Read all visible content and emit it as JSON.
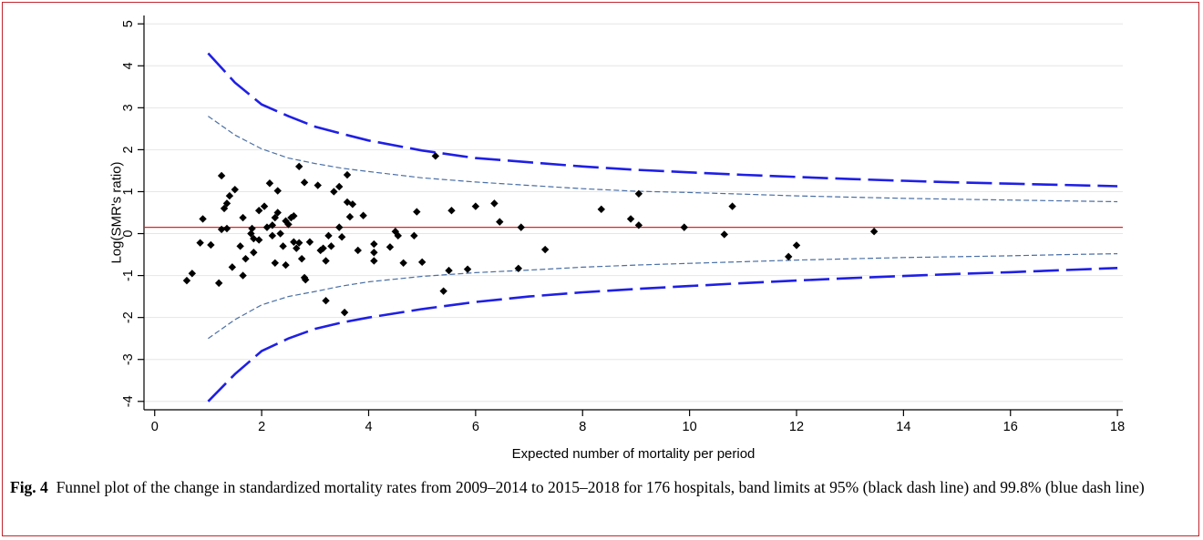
{
  "caption": {
    "label": "Fig. 4",
    "text": "Funnel plot of the change in standardized mortality rates from 2009–2014 to 2015–2018 for 176 hospitals, band limits at 95% (black dash line) and 99.8% (blue dash line)"
  },
  "chart_data": {
    "type": "scatter",
    "title": "",
    "xlabel": "Expected number of mortality per period",
    "ylabel": "Log(SMR's ratio)",
    "xlim": [
      -0.2,
      18.1
    ],
    "ylim": [
      -4.2,
      5.2
    ],
    "x_ticks": [
      0,
      2,
      4,
      6,
      8,
      10,
      12,
      14,
      16,
      18
    ],
    "y_ticks": [
      -4,
      -3,
      -2,
      -1,
      0,
      1,
      2,
      3,
      4,
      5
    ],
    "grid": "horizontal",
    "reference_line": {
      "y": 0.15,
      "color": "#d62728"
    },
    "limit_colors": {
      "inner": "#4a6fa5",
      "outer": "#1f1fe6"
    },
    "points_color": "#000000",
    "limits": {
      "x": [
        1,
        1.5,
        2,
        2.5,
        3,
        3.5,
        4,
        5,
        6,
        7,
        8,
        9,
        10,
        11,
        12,
        13,
        14,
        15,
        16,
        17,
        18
      ],
      "upper_998": [
        4.3,
        3.6,
        3.08,
        2.8,
        2.55,
        2.38,
        2.22,
        1.98,
        1.8,
        1.7,
        1.6,
        1.52,
        1.46,
        1.4,
        1.35,
        1.3,
        1.26,
        1.22,
        1.19,
        1.16,
        1.13
      ],
      "upper_95": [
        2.8,
        2.35,
        2.02,
        1.8,
        1.67,
        1.56,
        1.48,
        1.33,
        1.23,
        1.15,
        1.07,
        1.01,
        0.98,
        0.94,
        0.9,
        0.87,
        0.84,
        0.82,
        0.8,
        0.78,
        0.76
      ],
      "lower_95": [
        -2.5,
        -2.05,
        -1.7,
        -1.5,
        -1.38,
        -1.25,
        -1.15,
        -1.02,
        -0.93,
        -0.87,
        -0.8,
        -0.75,
        -0.71,
        -0.67,
        -0.63,
        -0.6,
        -0.57,
        -0.55,
        -0.53,
        -0.5,
        -0.48
      ],
      "lower_998": [
        -4.0,
        -3.35,
        -2.8,
        -2.5,
        -2.27,
        -2.12,
        -2.0,
        -1.8,
        -1.63,
        -1.5,
        -1.4,
        -1.32,
        -1.25,
        -1.18,
        -1.12,
        -1.06,
        -1.01,
        -0.96,
        -0.92,
        -0.87,
        -0.82
      ]
    },
    "points": [
      {
        "x": 0.6,
        "y": -1.12
      },
      {
        "x": 0.7,
        "y": -0.95
      },
      {
        "x": 0.85,
        "y": -0.22
      },
      {
        "x": 0.9,
        "y": 0.35
      },
      {
        "x": 1.05,
        "y": -0.27
      },
      {
        "x": 1.2,
        "y": -1.18
      },
      {
        "x": 1.25,
        "y": 1.38
      },
      {
        "x": 1.25,
        "y": 0.1
      },
      {
        "x": 1.3,
        "y": 0.6
      },
      {
        "x": 1.35,
        "y": 0.72
      },
      {
        "x": 1.35,
        "y": 0.12
      },
      {
        "x": 1.4,
        "y": 0.9
      },
      {
        "x": 1.5,
        "y": 1.05
      },
      {
        "x": 1.45,
        "y": -0.8
      },
      {
        "x": 1.6,
        "y": -0.3
      },
      {
        "x": 1.65,
        "y": 0.38
      },
      {
        "x": 1.65,
        "y": -1.0
      },
      {
        "x": 1.7,
        "y": -0.6
      },
      {
        "x": 1.8,
        "y": 0.0
      },
      {
        "x": 1.82,
        "y": 0.12
      },
      {
        "x": 1.85,
        "y": -0.12
      },
      {
        "x": 1.85,
        "y": -0.45
      },
      {
        "x": 1.95,
        "y": -0.15
      },
      {
        "x": 1.95,
        "y": 0.55
      },
      {
        "x": 2.05,
        "y": 0.65
      },
      {
        "x": 2.1,
        "y": 0.15
      },
      {
        "x": 2.15,
        "y": 1.2
      },
      {
        "x": 2.2,
        "y": 0.2
      },
      {
        "x": 2.2,
        "y": -0.05
      },
      {
        "x": 2.25,
        "y": -0.7
      },
      {
        "x": 2.25,
        "y": 0.38
      },
      {
        "x": 2.3,
        "y": 0.5
      },
      {
        "x": 2.3,
        "y": 1.02
      },
      {
        "x": 2.35,
        "y": 0.0
      },
      {
        "x": 2.4,
        "y": -0.3
      },
      {
        "x": 2.45,
        "y": -0.75
      },
      {
        "x": 2.45,
        "y": 0.3
      },
      {
        "x": 2.5,
        "y": 0.22
      },
      {
        "x": 2.55,
        "y": 0.38
      },
      {
        "x": 2.6,
        "y": -0.2
      },
      {
        "x": 2.6,
        "y": 0.42
      },
      {
        "x": 2.65,
        "y": -0.35
      },
      {
        "x": 2.7,
        "y": 1.6
      },
      {
        "x": 2.7,
        "y": -0.22
      },
      {
        "x": 2.75,
        "y": -0.6
      },
      {
        "x": 2.8,
        "y": -1.05
      },
      {
        "x": 2.8,
        "y": 1.22
      },
      {
        "x": 2.82,
        "y": -1.1
      },
      {
        "x": 2.9,
        "y": -0.2
      },
      {
        "x": 3.05,
        "y": 1.15
      },
      {
        "x": 3.1,
        "y": -0.4
      },
      {
        "x": 3.15,
        "y": -0.35
      },
      {
        "x": 3.2,
        "y": -0.65
      },
      {
        "x": 3.2,
        "y": -1.6
      },
      {
        "x": 3.25,
        "y": -0.05
      },
      {
        "x": 3.3,
        "y": -0.3
      },
      {
        "x": 3.35,
        "y": 1.0
      },
      {
        "x": 3.45,
        "y": 0.15
      },
      {
        "x": 3.45,
        "y": 1.12
      },
      {
        "x": 3.5,
        "y": -0.08
      },
      {
        "x": 3.55,
        "y": -1.88
      },
      {
        "x": 3.6,
        "y": 1.4
      },
      {
        "x": 3.6,
        "y": 0.75
      },
      {
        "x": 3.65,
        "y": 0.4
      },
      {
        "x": 3.7,
        "y": 0.7
      },
      {
        "x": 3.8,
        "y": -0.4
      },
      {
        "x": 3.9,
        "y": 0.43
      },
      {
        "x": 4.1,
        "y": -0.25
      },
      {
        "x": 4.1,
        "y": -0.45
      },
      {
        "x": 4.1,
        "y": -0.65
      },
      {
        "x": 4.4,
        "y": -0.32
      },
      {
        "x": 4.5,
        "y": 0.05
      },
      {
        "x": 4.55,
        "y": -0.05
      },
      {
        "x": 4.65,
        "y": -0.7
      },
      {
        "x": 4.85,
        "y": -0.05
      },
      {
        "x": 4.9,
        "y": 0.52
      },
      {
        "x": 5.0,
        "y": -0.68
      },
      {
        "x": 5.25,
        "y": 1.85
      },
      {
        "x": 5.4,
        "y": -1.37
      },
      {
        "x": 5.5,
        "y": -0.88
      },
      {
        "x": 5.55,
        "y": 0.55
      },
      {
        "x": 5.85,
        "y": -0.85
      },
      {
        "x": 6.0,
        "y": 0.65
      },
      {
        "x": 6.35,
        "y": 0.72
      },
      {
        "x": 6.45,
        "y": 0.28
      },
      {
        "x": 6.8,
        "y": -0.83
      },
      {
        "x": 6.85,
        "y": 0.15
      },
      {
        "x": 7.3,
        "y": -0.38
      },
      {
        "x": 8.35,
        "y": 0.58
      },
      {
        "x": 8.9,
        "y": 0.35
      },
      {
        "x": 9.05,
        "y": 0.2
      },
      {
        "x": 9.05,
        "y": 0.95
      },
      {
        "x": 9.9,
        "y": 0.15
      },
      {
        "x": 10.65,
        "y": -0.02
      },
      {
        "x": 10.8,
        "y": 0.65
      },
      {
        "x": 11.85,
        "y": -0.55
      },
      {
        "x": 12.0,
        "y": -0.28
      },
      {
        "x": 13.45,
        "y": 0.05
      }
    ]
  }
}
